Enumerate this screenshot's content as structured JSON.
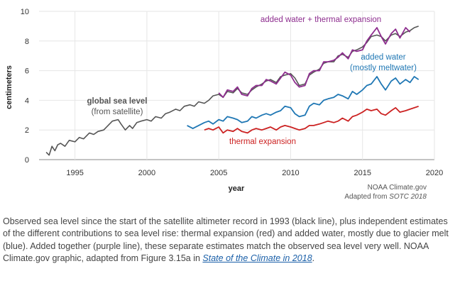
{
  "chart_data": {
    "type": "line",
    "ylabel": "centimeters",
    "xlabel": "year",
    "ylim": [
      0,
      10
    ],
    "xlim": [
      1992.5,
      2020
    ],
    "y_ticks": [
      "0",
      "2",
      "4",
      "6",
      "8",
      "10"
    ],
    "x_ticks": [
      "1995",
      "2000",
      "2005",
      "2010",
      "2015",
      "2020"
    ],
    "grid": true,
    "annotations": {
      "sum": "added water + thermal expansion",
      "water_1": "added water",
      "water_2": "(mostly meltwater)",
      "thermal": "thermal expansion",
      "global_1": "global sea level",
      "global_2": "(from satellite)"
    },
    "credit_1": "NOAA Climate.gov",
    "credit_2_prefix": "Adapted from ",
    "credit_2_italic": "SOTC 2018",
    "series": [
      {
        "key": "global",
        "color": "#555555",
        "x": [
          1993.0,
          1993.2,
          1993.4,
          1993.6,
          1993.8,
          1994.0,
          1994.3,
          1994.6,
          1995.0,
          1995.3,
          1995.6,
          1996.0,
          1996.3,
          1996.6,
          1997.0,
          1997.3,
          1997.6,
          1998.0,
          1998.2,
          1998.5,
          1998.8,
          1999.0,
          1999.3,
          1999.6,
          2000.0,
          2000.3,
          2000.6,
          2001.0,
          2001.3,
          2001.6,
          2002.0,
          2002.3,
          2002.6,
          2003.0,
          2003.3,
          2003.6,
          2004.0,
          2004.3,
          2004.6,
          2005.0,
          2005.3,
          2005.6,
          2006.0,
          2006.3,
          2006.6,
          2007.0,
          2007.3,
          2007.6,
          2008.0,
          2008.3,
          2008.6,
          2009.0,
          2009.3,
          2009.6,
          2010.0,
          2010.3,
          2010.6,
          2011.0,
          2011.3,
          2011.6,
          2012.0,
          2012.3,
          2012.6,
          2013.0,
          2013.3,
          2013.6,
          2014.0,
          2014.3,
          2014.6,
          2015.0,
          2015.3,
          2015.6,
          2016.0,
          2016.3,
          2016.6,
          2017.0,
          2017.3,
          2017.6,
          2018.0,
          2018.3,
          2018.6,
          2018.9
        ],
        "values": [
          0.5,
          0.3,
          0.9,
          0.6,
          1.0,
          1.1,
          0.9,
          1.3,
          1.2,
          1.5,
          1.4,
          1.8,
          1.7,
          1.9,
          2.0,
          2.3,
          2.6,
          2.7,
          2.4,
          2.0,
          2.3,
          2.1,
          2.5,
          2.6,
          2.7,
          2.6,
          2.9,
          2.8,
          3.1,
          3.2,
          3.4,
          3.3,
          3.6,
          3.7,
          3.6,
          3.9,
          3.8,
          4.0,
          4.3,
          4.4,
          4.2,
          4.6,
          4.5,
          4.8,
          4.5,
          4.4,
          4.7,
          4.9,
          5.1,
          5.3,
          5.4,
          5.2,
          5.6,
          5.7,
          5.8,
          5.5,
          5.0,
          5.1,
          5.7,
          5.9,
          6.1,
          6.5,
          6.6,
          6.6,
          7.0,
          7.1,
          6.9,
          7.3,
          7.4,
          7.6,
          7.9,
          8.3,
          8.4,
          8.3,
          8.0,
          8.4,
          8.5,
          8.3,
          8.6,
          8.7,
          8.9,
          9.0
        ]
      },
      {
        "key": "sum",
        "color": "#8e2e8f",
        "x": [
          2005.0,
          2005.3,
          2005.6,
          2006.0,
          2006.3,
          2006.6,
          2007.0,
          2007.3,
          2007.6,
          2008.0,
          2008.3,
          2008.6,
          2009.0,
          2009.3,
          2009.6,
          2010.0,
          2010.3,
          2010.6,
          2011.0,
          2011.3,
          2011.6,
          2012.0,
          2012.3,
          2012.6,
          2013.0,
          2013.3,
          2013.6,
          2014.0,
          2014.3,
          2014.6,
          2015.0,
          2015.3,
          2015.6,
          2016.0,
          2016.3,
          2016.6,
          2017.0,
          2017.3,
          2017.6,
          2018.0,
          2018.3
        ],
        "values": [
          4.5,
          4.2,
          4.7,
          4.6,
          4.9,
          4.4,
          4.3,
          4.8,
          5.0,
          5.0,
          5.4,
          5.3,
          5.1,
          5.5,
          5.9,
          5.7,
          5.2,
          4.9,
          5.0,
          5.8,
          6.0,
          6.0,
          6.6,
          6.6,
          6.7,
          6.9,
          7.2,
          6.8,
          7.4,
          7.3,
          7.4,
          8.0,
          8.4,
          8.9,
          8.3,
          7.8,
          8.5,
          8.8,
          8.2,
          8.9,
          8.6
        ]
      },
      {
        "key": "water",
        "color": "#1f77b4",
        "x": [
          2002.8,
          2003.2,
          2003.6,
          2004.0,
          2004.3,
          2004.6,
          2005.0,
          2005.3,
          2005.6,
          2006.0,
          2006.3,
          2006.6,
          2007.0,
          2007.3,
          2007.6,
          2008.0,
          2008.3,
          2008.6,
          2009.0,
          2009.3,
          2009.6,
          2010.0,
          2010.3,
          2010.6,
          2011.0,
          2011.3,
          2011.6,
          2012.0,
          2012.3,
          2012.6,
          2013.0,
          2013.3,
          2013.6,
          2014.0,
          2014.3,
          2014.6,
          2015.0,
          2015.3,
          2015.6,
          2016.0,
          2016.3,
          2016.6,
          2017.0,
          2017.3,
          2017.6,
          2018.0,
          2018.3,
          2018.6,
          2018.9
        ],
        "values": [
          2.3,
          2.1,
          2.3,
          2.5,
          2.6,
          2.4,
          2.7,
          2.6,
          2.9,
          2.8,
          2.7,
          2.5,
          2.6,
          2.9,
          2.8,
          3.0,
          3.1,
          3.0,
          3.2,
          3.3,
          3.6,
          3.5,
          3.1,
          2.9,
          3.0,
          3.6,
          3.8,
          3.7,
          4.0,
          4.1,
          4.2,
          4.4,
          4.3,
          4.1,
          4.6,
          4.4,
          4.7,
          5.0,
          5.1,
          5.6,
          5.1,
          4.7,
          5.3,
          5.5,
          5.1,
          5.4,
          5.2,
          5.6,
          5.4
        ]
      },
      {
        "key": "thermal",
        "color": "#cc2222",
        "x": [
          2004.0,
          2004.3,
          2004.6,
          2005.0,
          2005.3,
          2005.6,
          2006.0,
          2006.3,
          2006.6,
          2007.0,
          2007.3,
          2007.6,
          2008.0,
          2008.3,
          2008.6,
          2009.0,
          2009.3,
          2009.6,
          2010.0,
          2010.3,
          2010.6,
          2011.0,
          2011.3,
          2011.6,
          2012.0,
          2012.3,
          2012.6,
          2013.0,
          2013.3,
          2013.6,
          2014.0,
          2014.3,
          2014.6,
          2015.0,
          2015.3,
          2015.6,
          2016.0,
          2016.3,
          2016.6,
          2017.0,
          2017.3,
          2017.6,
          2018.0,
          2018.3,
          2018.6,
          2018.9
        ],
        "values": [
          2.0,
          2.1,
          2.0,
          2.2,
          1.8,
          2.0,
          1.9,
          2.1,
          1.9,
          1.8,
          2.0,
          2.1,
          2.0,
          2.1,
          2.2,
          2.0,
          2.2,
          2.3,
          2.2,
          2.1,
          2.0,
          2.1,
          2.3,
          2.3,
          2.4,
          2.5,
          2.6,
          2.5,
          2.6,
          2.8,
          2.6,
          2.9,
          3.0,
          3.2,
          3.4,
          3.3,
          3.4,
          3.1,
          3.0,
          3.3,
          3.5,
          3.2,
          3.3,
          3.4,
          3.5,
          3.6
        ]
      }
    ]
  },
  "caption": {
    "text": "Observed sea level since the start of the satellite altimeter record in 1993 (black line), plus independent estimates of the different contributions to sea level rise: thermal expansion (red) and added water, mostly due to glacier melt (blue). Added together (purple line), these separate estimates match the observed sea level very well. NOAA Climate.gov graphic, adapted from Figure 3.15a in ",
    "link": "State of the Climate in 2018",
    "end": "."
  }
}
